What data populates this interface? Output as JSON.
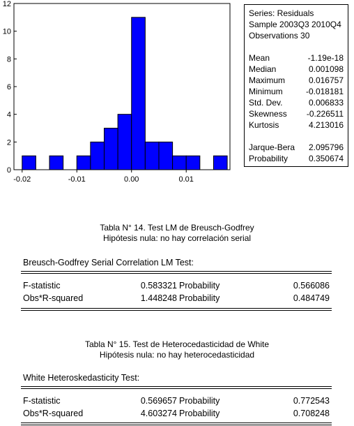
{
  "chart_data": {
    "type": "bar",
    "bins": [
      {
        "from": -0.02,
        "to": -0.0175,
        "count": 1
      },
      {
        "from": -0.0175,
        "to": -0.015,
        "count": 0
      },
      {
        "from": -0.015,
        "to": -0.0125,
        "count": 1
      },
      {
        "from": -0.0125,
        "to": -0.01,
        "count": 0
      },
      {
        "from": -0.01,
        "to": -0.0075,
        "count": 1
      },
      {
        "from": -0.0075,
        "to": -0.005,
        "count": 2
      },
      {
        "from": -0.005,
        "to": -0.0025,
        "count": 3
      },
      {
        "from": -0.0025,
        "to": 0.0,
        "count": 4
      },
      {
        "from": 0.0,
        "to": 0.0025,
        "count": 11
      },
      {
        "from": 0.0025,
        "to": 0.005,
        "count": 2
      },
      {
        "from": 0.005,
        "to": 0.0075,
        "count": 2
      },
      {
        "from": 0.0075,
        "to": 0.01,
        "count": 1
      },
      {
        "from": 0.01,
        "to": 0.0125,
        "count": 1
      },
      {
        "from": 0.0125,
        "to": 0.015,
        "count": 0
      },
      {
        "from": 0.015,
        "to": 0.0175,
        "count": 1
      }
    ],
    "xlim": [
      -0.0215,
      0.018
    ],
    "ylim": [
      0,
      12
    ],
    "xticks": [
      -0.02,
      -0.01,
      0.0,
      0.01
    ],
    "xtick_labels": [
      "-0.02",
      "-0.01",
      "0.00",
      "0.01"
    ],
    "yticks": [
      0,
      2,
      4,
      6,
      8,
      10,
      12
    ],
    "ytick_labels": [
      "0",
      "2",
      "4",
      "6",
      "8",
      "10",
      "12"
    ],
    "bar_color": "#0000ff",
    "grid": false
  },
  "stats_box": {
    "series_line": "Series: Residuals",
    "sample_line": "Sample 2003Q3 2010Q4",
    "obs_line": "Observations 30",
    "rows": [
      {
        "label": "Mean",
        "value": "-1.19e-18"
      },
      {
        "label": "Median",
        "value": "0.001098"
      },
      {
        "label": "Maximum",
        "value": "0.016757"
      },
      {
        "label": "Minimum",
        "value": "-0.018181"
      },
      {
        "label": "Std. Dev.",
        "value": "0.006833"
      },
      {
        "label": "Skewness",
        "value": "-0.226511"
      },
      {
        "label": "Kurtosis",
        "value": "4.213016"
      }
    ],
    "jb_rows": [
      {
        "label": "Jarque-Bera",
        "value": "2.095796"
      },
      {
        "label": "Probability",
        "value": "0.350674"
      }
    ]
  },
  "table14": {
    "caption_line1": "Tabla N° 14. Test LM de Breusch-Godfrey",
    "caption_line2": "Hipótesis nula: no hay correlación serial",
    "title": "Breusch-Godfrey Serial Correlation LM Test:",
    "rows": [
      {
        "name": "F-statistic",
        "value": "0.583321",
        "label": "Probability",
        "prob": "0.566086"
      },
      {
        "name": "Obs*R-squared",
        "value": "1.448248",
        "label": "Probability",
        "prob": "0.484749"
      }
    ]
  },
  "table15": {
    "caption_line1": "Tabla N° 15. Test de Heterocedasticidad de White",
    "caption_line2": "Hipótesis nula: no hay heterocedasticidad",
    "title": "White Heteroskedasticity Test:",
    "rows": [
      {
        "name": "F-statistic",
        "value": "0.569657",
        "label": "Probability",
        "prob": "0.772543"
      },
      {
        "name": "Obs*R-squared",
        "value": "4.603274",
        "label": "Probability",
        "prob": "0.708248"
      }
    ]
  }
}
